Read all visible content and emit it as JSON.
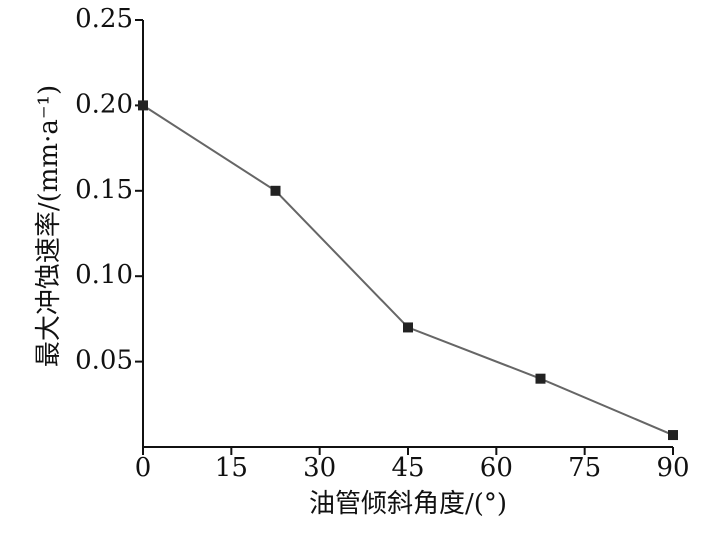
{
  "chart_data": {
    "type": "line",
    "x": [
      0,
      22.5,
      45,
      67.5,
      90
    ],
    "series": [
      {
        "values": [
          0.2,
          0.15,
          0.07,
          0.04,
          0.007
        ],
        "color": "#666666",
        "marker_color": "#222222"
      }
    ],
    "xlim": [
      0,
      90
    ],
    "xticks": [
      0,
      15,
      30,
      45,
      60,
      75,
      90
    ],
    "ylim": [
      0,
      0.25
    ],
    "yticks": [
      0.05,
      {
        "value": 0.1,
        "label": "0.10"
      },
      0.15,
      {
        "value": 0.2,
        "label": "0.20"
      },
      0.25
    ],
    "xlabel": "油管倾斜角度/(°)",
    "ylabel": "最大冲蚀速率/(mm·a⁻¹)",
    "grid": false
  }
}
